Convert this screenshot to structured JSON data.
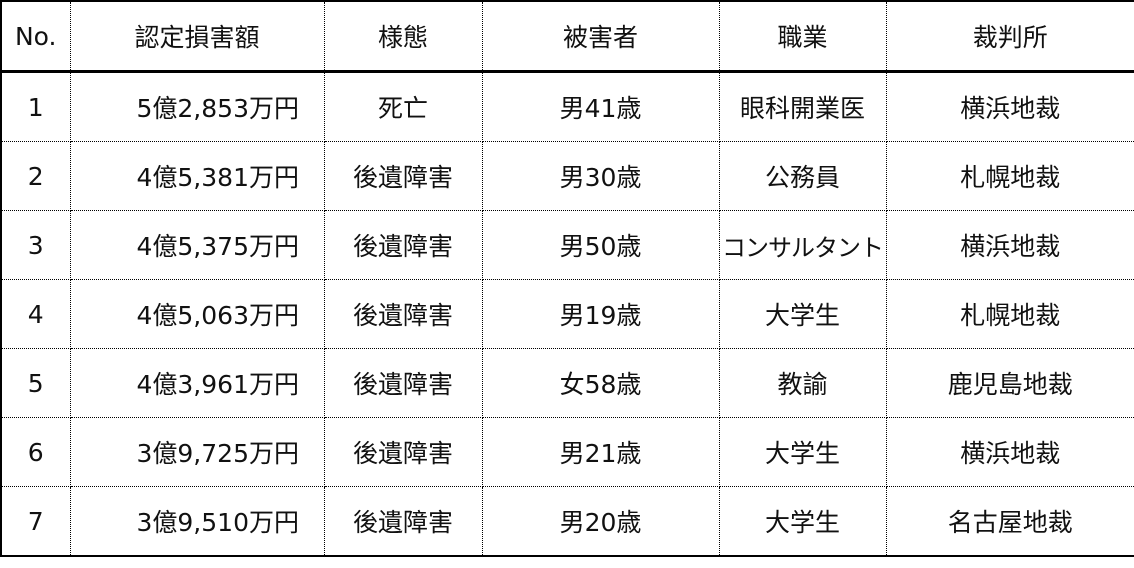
{
  "table": {
    "headers": [
      "No.",
      "認定損害額",
      "様態",
      "被害者",
      "職業",
      "裁判所"
    ],
    "rows": [
      [
        "1",
        "5億2,853万円",
        "死亡",
        "男41歳",
        "眼科開業医",
        "横浜地裁"
      ],
      [
        "2",
        "4億5,381万円",
        "後遺障害",
        "男30歳",
        "公務員",
        "札幌地裁"
      ],
      [
        "3",
        "4億5,375万円",
        "後遺障害",
        "男50歳",
        "コンサルタント",
        "横浜地裁"
      ],
      [
        "4",
        "4億5,063万円",
        "後遺障害",
        "男19歳",
        "大学生",
        "札幌地裁"
      ],
      [
        "5",
        "4億3,961万円",
        "後遺障害",
        "女58歳",
        "教諭",
        "鹿児島地裁"
      ],
      [
        "6",
        "3億9,725万円",
        "後遺障害",
        "男21歳",
        "大学生",
        "横浜地裁"
      ],
      [
        "7",
        "3億9,510万円",
        "後遺障害",
        "男20歳",
        "大学生",
        "名古屋地裁"
      ]
    ]
  }
}
